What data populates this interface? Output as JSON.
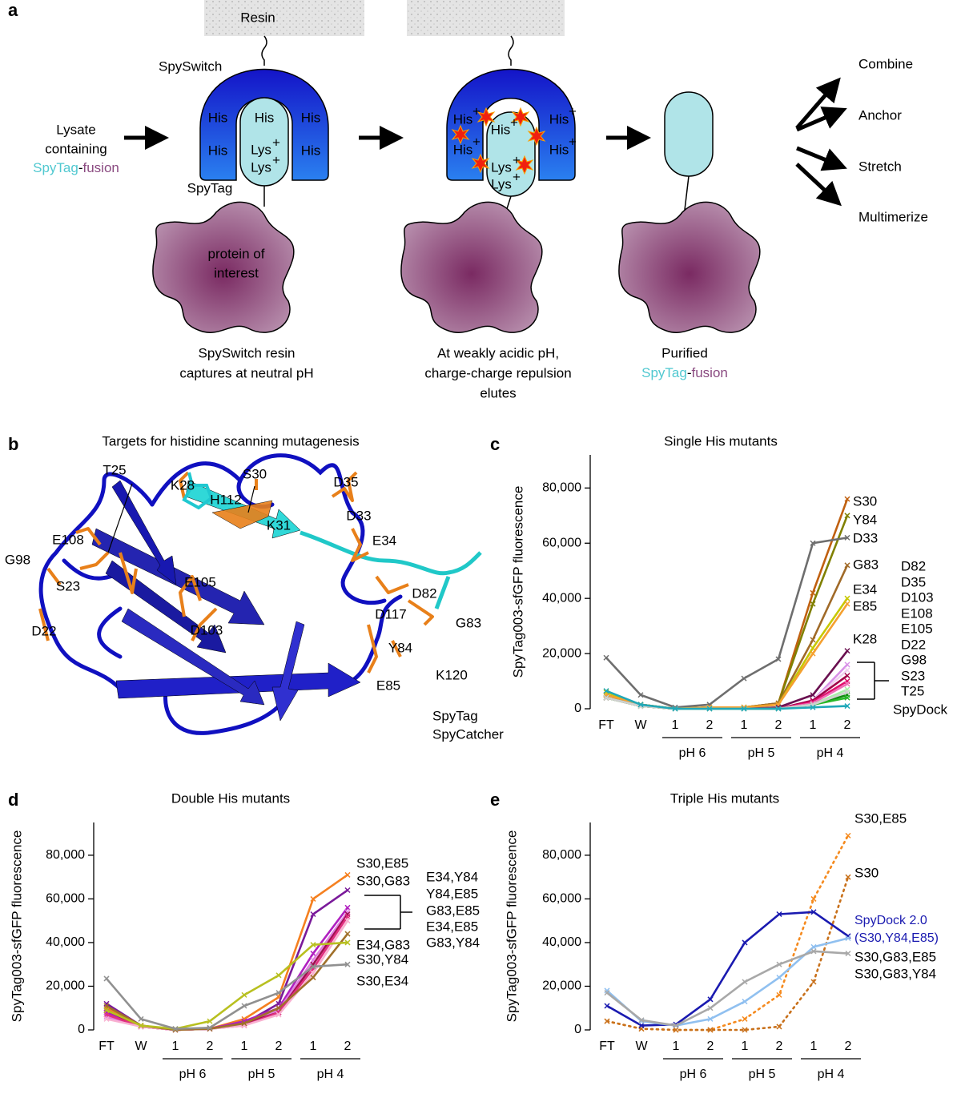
{
  "panel_a": {
    "panel": "a",
    "resin": "Resin",
    "spyswitch": "SpySwitch",
    "his": "His",
    "lys": "Lys",
    "charge": "+",
    "spytag": "SpyTag",
    "lysate_lines": [
      "Lysate",
      "containing"
    ],
    "fusion_tag": "SpyTag",
    "dash": "-",
    "fusion": "fusion",
    "protein": [
      "protein of",
      "interest"
    ],
    "step1": [
      "SpySwitch resin",
      "captures at neutral pH"
    ],
    "step2": [
      "At weakly acidic pH,",
      "charge-charge repulsion",
      "elutes"
    ],
    "step3": "Purified",
    "outcomes": [
      "Combine",
      "Anchor",
      "Stretch",
      "Multimerize"
    ]
  },
  "panel_b": {
    "panel": "b",
    "title": "Targets for histidine scanning mutagenesis",
    "residues": [
      {
        "name": "T25",
        "color": "#e8801a"
      },
      {
        "name": "K28",
        "color": "#e8801a"
      },
      {
        "name": "S30",
        "color": "#e8801a"
      },
      {
        "name": "D35",
        "color": "#e8801a"
      },
      {
        "name": "D33",
        "color": "#e8801a"
      },
      {
        "name": "E34",
        "color": "#e8801a"
      },
      {
        "name": "E108",
        "color": "#e8801a"
      },
      {
        "name": "G98",
        "color": "#e8801a"
      },
      {
        "name": "S23",
        "color": "#e8801a"
      },
      {
        "name": "D22",
        "color": "#e8801a"
      },
      {
        "name": "E105",
        "color": "#e8801a"
      },
      {
        "name": "D103",
        "color": "#e8801a"
      },
      {
        "name": "D82",
        "color": "#e8801a"
      },
      {
        "name": "G83",
        "color": "#e8801a"
      },
      {
        "name": "Y84",
        "color": "#e8801a"
      },
      {
        "name": "E85",
        "color": "#e8801a"
      },
      {
        "name": "H112",
        "color": "#20c8d0"
      },
      {
        "name": "K31",
        "color": "#999999"
      },
      {
        "name": "D117",
        "color": "#999999"
      },
      {
        "name": "K120",
        "color": "#20c8d0"
      }
    ],
    "legend": [
      {
        "name": "SpyTag",
        "color": "#20c8d0"
      },
      {
        "name": "SpyCatcher",
        "color": "#1010c8"
      }
    ]
  },
  "chart_data": [
    {
      "type": "line",
      "panel": "c",
      "title": "Single His mutants",
      "ylabel": "SpyTag003-sfGFP fluorescence",
      "categories": [
        "FT",
        "W",
        "1",
        "2",
        "1",
        "2",
        "1",
        "2"
      ],
      "groups": [
        "pH 6",
        "pH 5",
        "pH 4"
      ],
      "ylim": [
        0,
        92000
      ],
      "yticks": [
        0,
        {
          "value": 20000,
          "label": "20,000"
        },
        {
          "value": 40000,
          "label": "40,000"
        },
        {
          "value": 60000,
          "label": "60,000"
        },
        {
          "value": 80000,
          "label": "80,000"
        }
      ],
      "series": [
        {
          "name": "S30",
          "color": "#c06010",
          "values": [
            5000,
            1500,
            0,
            500,
            500,
            2000,
            42000,
            76000
          ]
        },
        {
          "name": "Y84",
          "color": "#808000",
          "values": [
            5000,
            1500,
            0,
            500,
            500,
            2000,
            38000,
            70000
          ]
        },
        {
          "name": "D33",
          "color": "#6e6e6e",
          "values": [
            18500,
            5000,
            500,
            1500,
            11000,
            18000,
            60000,
            62000
          ]
        },
        {
          "name": "G83",
          "color": "#a06a28",
          "values": [
            5000,
            1500,
            0,
            500,
            500,
            2000,
            25000,
            52000
          ]
        },
        {
          "name": "E34",
          "color": "#c8c800",
          "values": [
            6000,
            1500,
            0,
            500,
            500,
            1500,
            22000,
            40000
          ]
        },
        {
          "name": "E85",
          "color": "#f5a030",
          "values": [
            5000,
            1500,
            0,
            500,
            500,
            1500,
            20000,
            38000
          ]
        },
        {
          "name": "K28",
          "color": "#6a1050",
          "values": [
            4000,
            1000,
            0,
            0,
            0,
            500,
            5000,
            21000
          ]
        },
        {
          "name": "D82",
          "color": "#d890e8",
          "values": [
            4000,
            1000,
            0,
            0,
            0,
            0,
            3000,
            16000
          ]
        },
        {
          "name": "D35",
          "color": "#f0d0f0",
          "values": [
            4000,
            1000,
            0,
            0,
            0,
            0,
            3000,
            14000
          ]
        },
        {
          "name": "D103",
          "color": "#a00048",
          "values": [
            4000,
            1000,
            0,
            0,
            0,
            0,
            3000,
            12000
          ]
        },
        {
          "name": "E108",
          "color": "#e0106e",
          "values": [
            4000,
            1000,
            0,
            0,
            0,
            0,
            2500,
            10000
          ]
        },
        {
          "name": "E105",
          "color": "#f070b8",
          "values": [
            4000,
            1000,
            0,
            0,
            0,
            0,
            2000,
            9000
          ]
        },
        {
          "name": "D22",
          "color": "#108a10",
          "values": [
            4000,
            1000,
            0,
            0,
            0,
            0,
            1500,
            5000
          ]
        },
        {
          "name": "G98",
          "color": "#28b828",
          "values": [
            4000,
            1000,
            0,
            0,
            0,
            0,
            1500,
            4000
          ]
        },
        {
          "name": "S23",
          "color": "#a8f0a8",
          "values": [
            4000,
            1000,
            0,
            0,
            0,
            0,
            1500,
            7000
          ]
        },
        {
          "name": "T25",
          "color": "#d0d0d0",
          "values": [
            4000,
            1000,
            0,
            0,
            0,
            0,
            1500,
            6000
          ]
        },
        {
          "name": "SpyDock",
          "color": "#20a8b8",
          "values": [
            6500,
            1500,
            0,
            0,
            0,
            0,
            500,
            1000
          ]
        }
      ]
    },
    {
      "type": "line",
      "panel": "d",
      "title": "Double His mutants",
      "ylabel": "SpyTag003-sfGFP fluorescence",
      "categories": [
        "FT",
        "W",
        "1",
        "2",
        "1",
        "2",
        "1",
        "2"
      ],
      "groups": [
        "pH 6",
        "pH 5",
        "pH 4"
      ],
      "ylim": [
        0,
        95000
      ],
      "yticks": [
        0,
        {
          "value": 20000,
          "label": "20,000"
        },
        {
          "value": 40000,
          "label": "40,000"
        },
        {
          "value": 60000,
          "label": "60,000"
        },
        {
          "value": 80000,
          "label": "80,000"
        }
      ],
      "series": [
        {
          "name": "S30,E85",
          "color": "#f58020",
          "values": [
            10000,
            2000,
            0,
            500,
            5000,
            15000,
            60000,
            71000
          ]
        },
        {
          "name": "S30,G83",
          "color": "#7a1a9a",
          "values": [
            12000,
            2000,
            0,
            500,
            3000,
            12000,
            53000,
            64000
          ]
        },
        {
          "name": "E34,Y84",
          "color": "#b020c0",
          "values": [
            8000,
            1500,
            0,
            500,
            4000,
            10000,
            35000,
            56000
          ]
        },
        {
          "name": "Y84,E85",
          "color": "#e080e0",
          "values": [
            6000,
            1500,
            0,
            500,
            3000,
            9000,
            32000,
            54000
          ]
        },
        {
          "name": "G83,E85",
          "color": "#a01050",
          "values": [
            9000,
            1500,
            0,
            500,
            3000,
            8000,
            30000,
            53000
          ]
        },
        {
          "name": "E34,E85",
          "color": "#e03080",
          "values": [
            7000,
            1500,
            0,
            500,
            2000,
            8000,
            28000,
            52000
          ]
        },
        {
          "name": "G83,Y84",
          "color": "#f8b0d0",
          "values": [
            5000,
            1500,
            0,
            500,
            2000,
            7000,
            26000,
            50000
          ]
        },
        {
          "name": "E34,G83",
          "color": "#a0702a",
          "values": [
            11000,
            2000,
            0,
            500,
            3000,
            10000,
            24000,
            44000
          ]
        },
        {
          "name": "S30,Y84",
          "color": "#b8c020",
          "values": [
            9000,
            2000,
            500,
            4000,
            16000,
            25000,
            39000,
            40000
          ]
        },
        {
          "name": "S30,E34",
          "color": "#909090",
          "values": [
            23500,
            5000,
            500,
            1000,
            11000,
            17000,
            29000,
            30000
          ]
        }
      ]
    },
    {
      "type": "line",
      "panel": "e",
      "title": "Triple His mutants",
      "ylabel": "SpyTag003-sfGFP fluorescence",
      "categories": [
        "FT",
        "W",
        "1",
        "2",
        "1",
        "2",
        "1",
        "2"
      ],
      "groups": [
        "pH 6",
        "pH 5",
        "pH 4"
      ],
      "ylim": [
        0,
        95000
      ],
      "yticks": [
        0,
        {
          "value": 20000,
          "label": "20,000"
        },
        {
          "value": 40000,
          "label": "40,000"
        },
        {
          "value": 60000,
          "label": "60,000"
        },
        {
          "value": 80000,
          "label": "80,000"
        }
      ],
      "series": [
        {
          "name": "S30,E85",
          "color": "#f58a1e",
          "dashed": true,
          "values": [
            4000,
            500,
            0,
            0,
            5000,
            16000,
            60000,
            89000
          ]
        },
        {
          "name": "S30",
          "color": "#c8701a",
          "dashed": true,
          "values": [
            4000,
            500,
            0,
            0,
            0,
            1500,
            22000,
            70000
          ]
        },
        {
          "name": "SpyDock 2.0 (S30,Y84,E85)",
          "color": "#1a1ab0",
          "values": [
            11000,
            2000,
            2500,
            14000,
            40000,
            53000,
            54000,
            43000
          ]
        },
        {
          "name": "S30,G83,E85",
          "color": "#90c0f0",
          "values": [
            18000,
            4000,
            2000,
            5000,
            13000,
            24000,
            38000,
            42000
          ]
        },
        {
          "name": "S30,G83,Y84",
          "color": "#a8a8a8",
          "values": [
            17000,
            4500,
            2000,
            10000,
            22000,
            30000,
            36000,
            35000
          ]
        }
      ]
    }
  ]
}
